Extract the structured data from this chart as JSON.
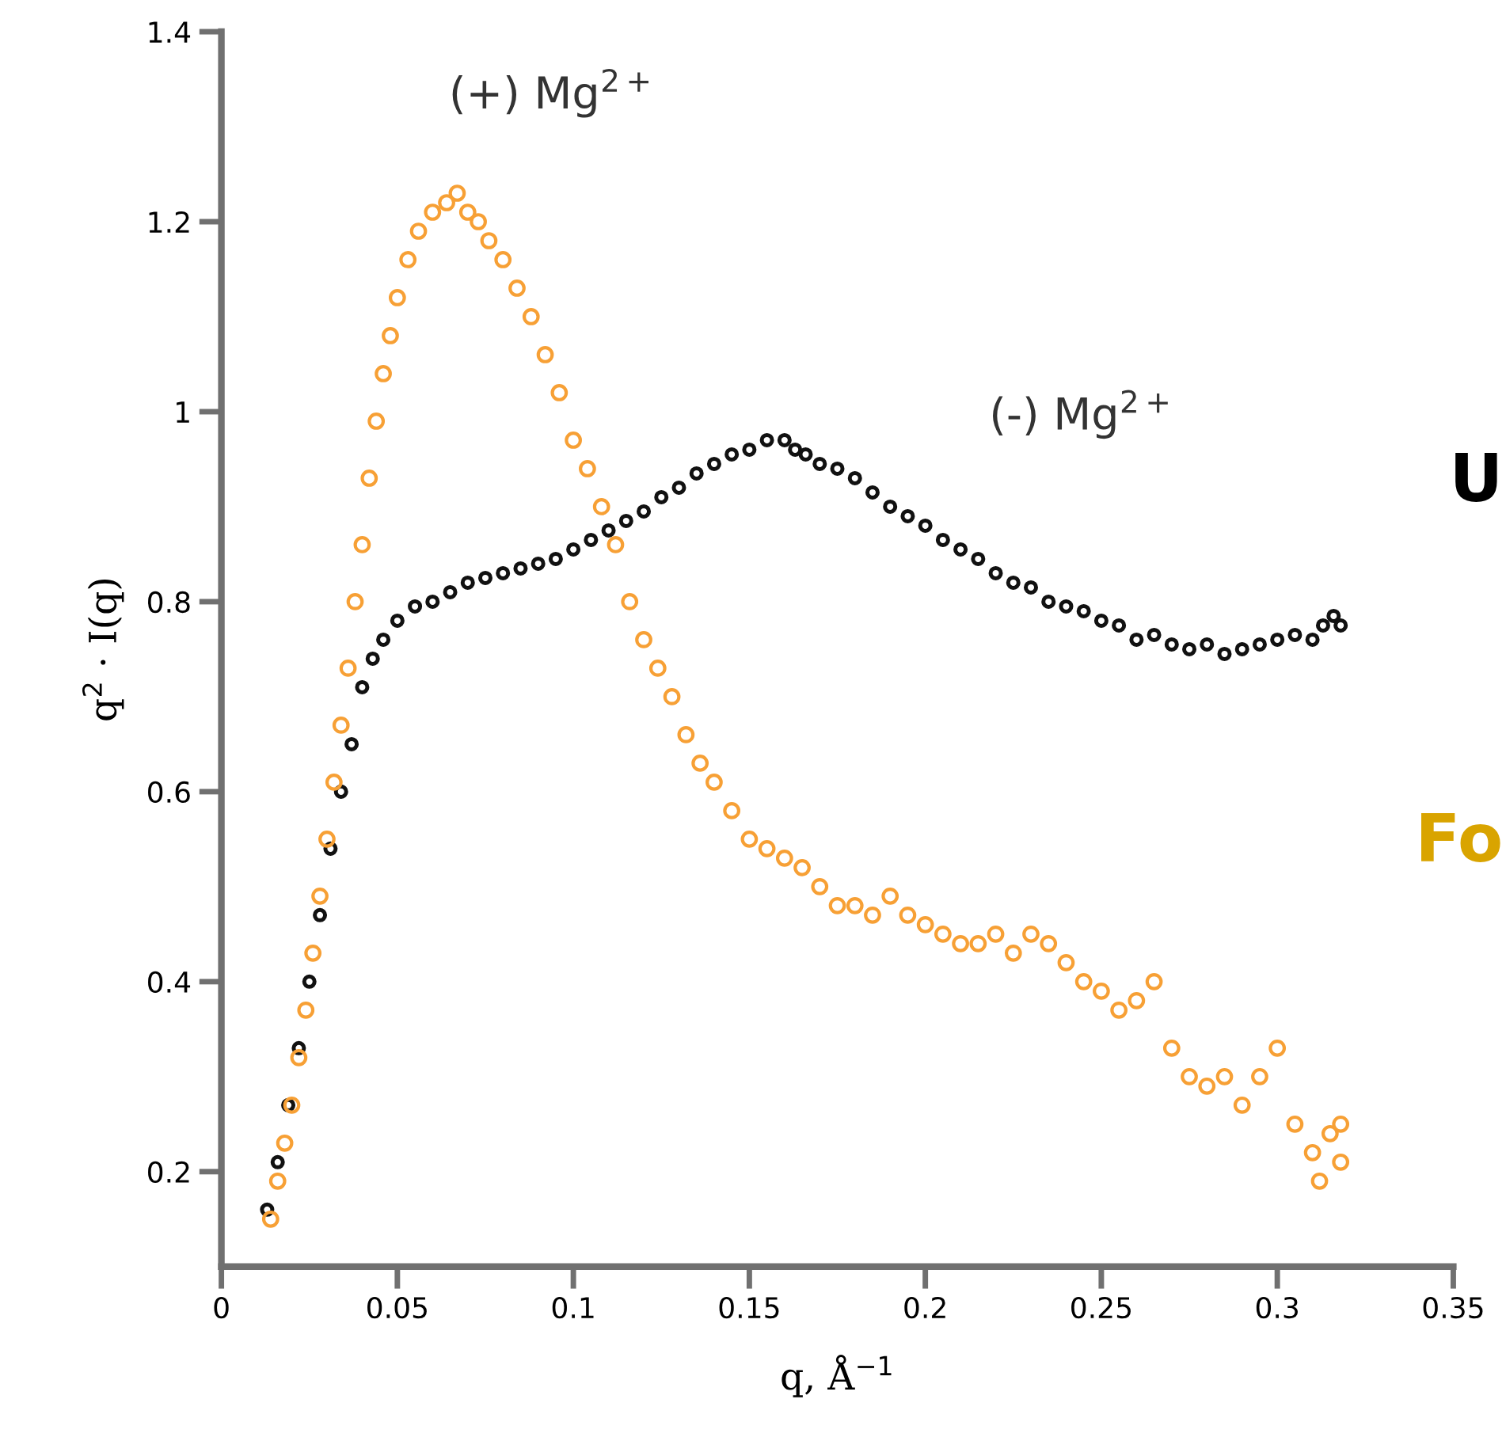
{
  "chart_data": {
    "type": "scatter",
    "xlabel": "q, Å$^{−1}$",
    "ylabel": "q$^{2}$ · I(q)",
    "xlim": [
      0,
      0.35
    ],
    "xticks": [
      0,
      0.05,
      0.1,
      0.15,
      0.2,
      0.25,
      0.3,
      0.35
    ],
    "ylim": [
      0.1,
      1.4
    ],
    "yticks": [
      0.2,
      0.4,
      0.6,
      0.8,
      1,
      1.2,
      1.4
    ],
    "marker": "circle",
    "grid": false,
    "annotations": [
      "(+) Mg$^{2+}$",
      "(-) Mg$^{2+}$",
      "U",
      "Fo"
    ],
    "series": [
      {
        "color": "#f7a035",
        "x": [
          0.014,
          0.016,
          0.018,
          0.02,
          0.022,
          0.024,
          0.026,
          0.028,
          0.03,
          0.032,
          0.034,
          0.036,
          0.038,
          0.04,
          0.042,
          0.044,
          0.046,
          0.048,
          0.05,
          0.053,
          0.056,
          0.06,
          0.064,
          0.067,
          0.07,
          0.073,
          0.076,
          0.08,
          0.084,
          0.088,
          0.092,
          0.096,
          0.1,
          0.104,
          0.108,
          0.112,
          0.116,
          0.12,
          0.124,
          0.128,
          0.132,
          0.136,
          0.14,
          0.145,
          0.15,
          0.155,
          0.16,
          0.165,
          0.17,
          0.175,
          0.18,
          0.185,
          0.19,
          0.195,
          0.2,
          0.205,
          0.21,
          0.215,
          0.22,
          0.225,
          0.23,
          0.235,
          0.24,
          0.245,
          0.25,
          0.255,
          0.26,
          0.265,
          0.27,
          0.275,
          0.28,
          0.285,
          0.29,
          0.295,
          0.3,
          0.305,
          0.31,
          0.312,
          0.315,
          0.318,
          0.318
        ],
        "values": [
          0.15,
          0.19,
          0.23,
          0.27,
          0.32,
          0.37,
          0.43,
          0.49,
          0.55,
          0.61,
          0.67,
          0.73,
          0.8,
          0.86,
          0.93,
          0.99,
          1.04,
          1.08,
          1.12,
          1.16,
          1.19,
          1.21,
          1.22,
          1.23,
          1.21,
          1.2,
          1.18,
          1.16,
          1.13,
          1.1,
          1.06,
          1.02,
          0.97,
          0.94,
          0.9,
          0.86,
          0.8,
          0.76,
          0.73,
          0.7,
          0.66,
          0.63,
          0.61,
          0.58,
          0.55,
          0.54,
          0.53,
          0.52,
          0.5,
          0.48,
          0.48,
          0.47,
          0.49,
          0.47,
          0.46,
          0.45,
          0.44,
          0.44,
          0.45,
          0.43,
          0.45,
          0.44,
          0.42,
          0.4,
          0.39,
          0.37,
          0.38,
          0.4,
          0.33,
          0.3,
          0.29,
          0.3,
          0.27,
          0.3,
          0.33,
          0.25,
          0.22,
          0.19,
          0.24,
          0.25,
          0.21
        ]
      },
      {
        "color": "#111111",
        "x": [
          0.013,
          0.016,
          0.019,
          0.022,
          0.025,
          0.028,
          0.031,
          0.034,
          0.037,
          0.04,
          0.043,
          0.046,
          0.05,
          0.055,
          0.06,
          0.065,
          0.07,
          0.075,
          0.08,
          0.085,
          0.09,
          0.095,
          0.1,
          0.105,
          0.11,
          0.115,
          0.12,
          0.125,
          0.13,
          0.135,
          0.14,
          0.145,
          0.15,
          0.155,
          0.16,
          0.163,
          0.166,
          0.17,
          0.175,
          0.18,
          0.185,
          0.19,
          0.195,
          0.2,
          0.205,
          0.21,
          0.215,
          0.22,
          0.225,
          0.23,
          0.235,
          0.24,
          0.245,
          0.25,
          0.255,
          0.26,
          0.265,
          0.27,
          0.275,
          0.28,
          0.285,
          0.29,
          0.295,
          0.3,
          0.305,
          0.31,
          0.313,
          0.316,
          0.318
        ],
        "values": [
          0.16,
          0.21,
          0.27,
          0.33,
          0.4,
          0.47,
          0.54,
          0.6,
          0.65,
          0.71,
          0.74,
          0.76,
          0.78,
          0.795,
          0.8,
          0.81,
          0.82,
          0.825,
          0.83,
          0.835,
          0.84,
          0.845,
          0.855,
          0.865,
          0.875,
          0.885,
          0.895,
          0.91,
          0.92,
          0.935,
          0.945,
          0.955,
          0.96,
          0.97,
          0.97,
          0.96,
          0.955,
          0.945,
          0.94,
          0.93,
          0.915,
          0.9,
          0.89,
          0.88,
          0.865,
          0.855,
          0.845,
          0.83,
          0.82,
          0.815,
          0.8,
          0.795,
          0.79,
          0.78,
          0.775,
          0.76,
          0.765,
          0.755,
          0.75,
          0.755,
          0.745,
          0.75,
          0.755,
          0.76,
          0.765,
          0.76,
          0.775,
          0.785,
          0.775
        ]
      }
    ]
  }
}
